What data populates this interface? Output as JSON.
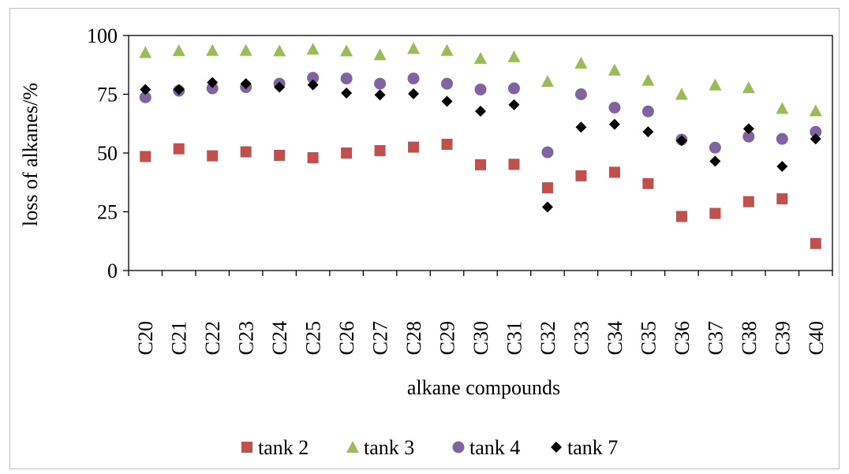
{
  "chart_data": {
    "type": "scatter",
    "title": "",
    "xlabel": "alkane compounds",
    "ylabel": "loss of alkanes/%",
    "ylim": [
      0,
      100
    ],
    "yticks": [
      0,
      25,
      50,
      75,
      100
    ],
    "grid": false,
    "legend_position": "bottom",
    "categories": [
      "C20",
      "C21",
      "C22",
      "C23",
      "C24",
      "C25",
      "C26",
      "C27",
      "C28",
      "C29",
      "C30",
      "C31",
      "C32",
      "C33",
      "C34",
      "C35",
      "C36",
      "C37",
      "C38",
      "C39",
      "C40"
    ],
    "series": [
      {
        "name": "tank 2",
        "marker": "square",
        "color": "#c0504d",
        "values": [
          48.5,
          51.8,
          48.8,
          50.5,
          49.0,
          48.0,
          50.0,
          51.0,
          52.5,
          53.7,
          45.0,
          45.2,
          35.2,
          40.3,
          41.8,
          37.0,
          23.0,
          24.3,
          29.3,
          30.5,
          11.5
        ]
      },
      {
        "name": "tank 3",
        "marker": "triangle",
        "color": "#9bbb59",
        "values": [
          92.8,
          93.6,
          93.7,
          93.7,
          93.5,
          94.2,
          93.5,
          91.8,
          94.5,
          93.7,
          90.3,
          91.0,
          80.5,
          88.3,
          85.3,
          81.0,
          75.0,
          79.0,
          77.8,
          69.0,
          68.0
        ]
      },
      {
        "name": "tank 4",
        "marker": "circle",
        "color": "#8064a2",
        "values": [
          73.7,
          76.5,
          77.5,
          78.0,
          79.5,
          82.0,
          81.7,
          79.5,
          81.7,
          79.5,
          77.0,
          77.5,
          50.3,
          75.0,
          69.3,
          67.7,
          55.7,
          52.3,
          57.0,
          56.0,
          59.0
        ]
      },
      {
        "name": "tank 7",
        "marker": "diamond",
        "color": "#000000",
        "values": [
          77.0,
          77.0,
          80.0,
          79.5,
          78.0,
          79.0,
          75.5,
          74.7,
          75.2,
          72.0,
          67.8,
          70.5,
          27.0,
          61.0,
          62.2,
          59.0,
          55.3,
          46.5,
          60.3,
          44.3,
          56.0
        ]
      }
    ]
  }
}
